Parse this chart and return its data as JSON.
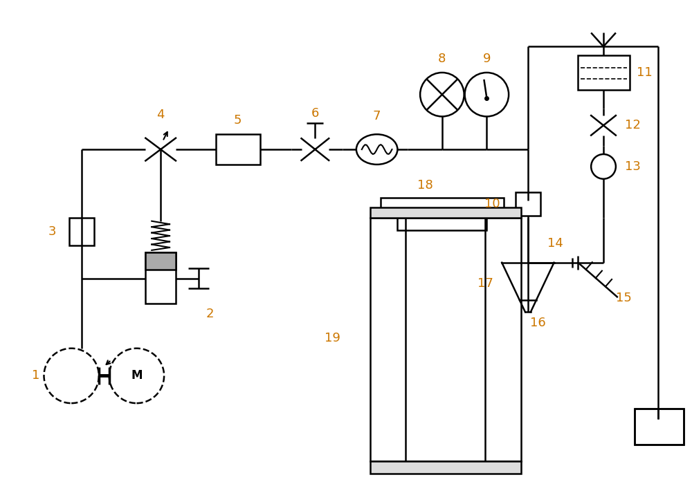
{
  "bg_color": "#ffffff",
  "line_color": "#000000",
  "label_color": "#cc7700",
  "label_fontsize": 13,
  "fig_width": 10.0,
  "fig_height": 7.0
}
